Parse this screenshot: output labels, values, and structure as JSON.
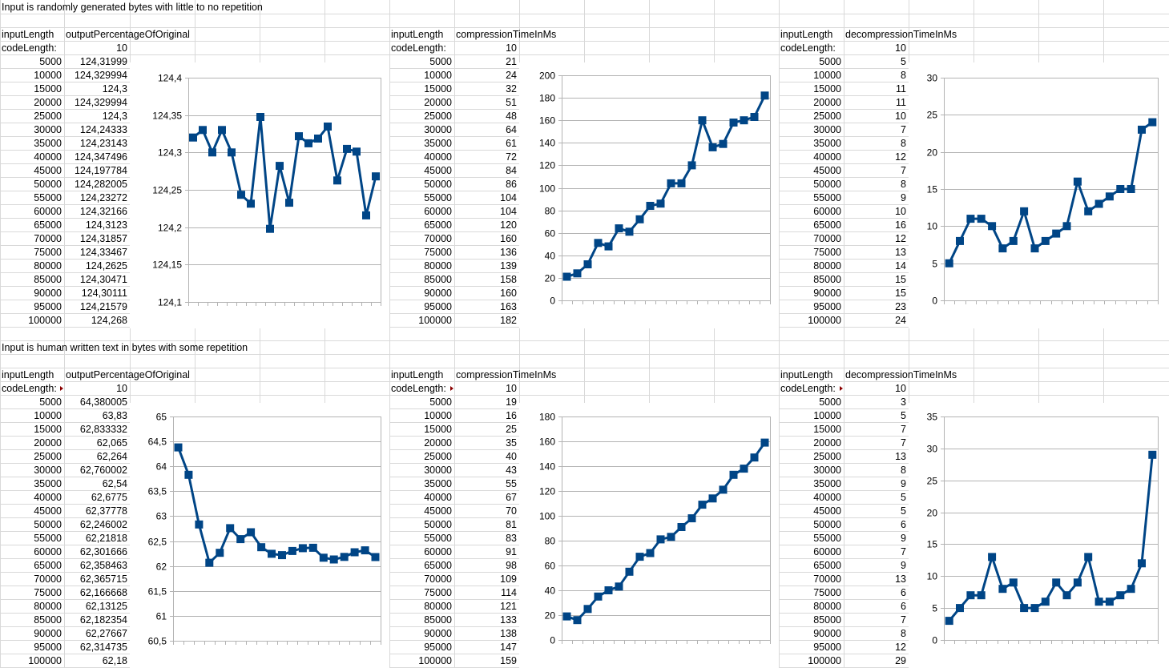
{
  "sections": [
    {
      "heading": "Input is randomly generated bytes with little to no repetition",
      "tables": [
        {
          "col1": "inputLength",
          "col2": "outputPercentageOfOriginal",
          "code_label": "codeLength:",
          "code_value": "10",
          "code_note": false,
          "input_lengths": [
            "5000",
            "10000",
            "15000",
            "20000",
            "25000",
            "30000",
            "35000",
            "40000",
            "45000",
            "50000",
            "55000",
            "60000",
            "65000",
            "70000",
            "75000",
            "80000",
            "85000",
            "90000",
            "95000",
            "100000"
          ],
          "values": [
            "124,31999",
            "124,329994",
            "124,3",
            "124,329994",
            "124,3",
            "124,24333",
            "124,23143",
            "124,347496",
            "124,197784",
            "124,282005",
            "124,23272",
            "124,32166",
            "124,3123",
            "124,31857",
            "124,33467",
            "124,2625",
            "124,30471",
            "124,30111",
            "124,21579",
            "124,268"
          ]
        },
        {
          "col1": "inputLength",
          "col2": "compressionTimeInMs",
          "code_label": "codeLength:",
          "code_value": "10",
          "code_note": false,
          "input_lengths": [
            "5000",
            "10000",
            "15000",
            "20000",
            "25000",
            "30000",
            "35000",
            "40000",
            "45000",
            "50000",
            "55000",
            "60000",
            "65000",
            "70000",
            "75000",
            "80000",
            "85000",
            "90000",
            "95000",
            "100000"
          ],
          "values": [
            "21",
            "24",
            "32",
            "51",
            "48",
            "64",
            "61",
            "72",
            "84",
            "86",
            "104",
            "104",
            "120",
            "160",
            "136",
            "139",
            "158",
            "160",
            "163",
            "182"
          ]
        },
        {
          "col1": "inputLength",
          "col2": "decompressionTimeInMs",
          "code_label": "codeLength:",
          "code_value": "10",
          "code_note": false,
          "input_lengths": [
            "5000",
            "10000",
            "15000",
            "20000",
            "25000",
            "30000",
            "35000",
            "40000",
            "45000",
            "50000",
            "55000",
            "60000",
            "65000",
            "70000",
            "75000",
            "80000",
            "85000",
            "90000",
            "95000",
            "100000"
          ],
          "values": [
            "5",
            "8",
            "11",
            "11",
            "10",
            "7",
            "8",
            "12",
            "7",
            "8",
            "9",
            "10",
            "16",
            "12",
            "13",
            "14",
            "15",
            "15",
            "23",
            "24"
          ]
        }
      ]
    },
    {
      "heading": "Input is human written text in bytes with some repetition",
      "tables": [
        {
          "col1": "inputLength",
          "col2": "outputPercentageOfOriginal",
          "code_label": "codeLength:",
          "code_value": "10",
          "code_note": true,
          "input_lengths": [
            "5000",
            "10000",
            "15000",
            "20000",
            "25000",
            "30000",
            "35000",
            "40000",
            "45000",
            "50000",
            "55000",
            "60000",
            "65000",
            "70000",
            "75000",
            "80000",
            "85000",
            "90000",
            "95000",
            "100000"
          ],
          "values": [
            "64,380005",
            "63,83",
            "62,833332",
            "62,065",
            "62,264",
            "62,760002",
            "62,54",
            "62,6775",
            "62,37778",
            "62,246002",
            "62,21818",
            "62,301666",
            "62,358463",
            "62,365715",
            "62,166668",
            "62,13125",
            "62,182354",
            "62,27667",
            "62,314735",
            "62,18"
          ]
        },
        {
          "col1": "inputLength",
          "col2": "compressionTimeInMs",
          "code_label": "codeLength:",
          "code_value": "10",
          "code_note": true,
          "input_lengths": [
            "5000",
            "10000",
            "15000",
            "20000",
            "25000",
            "30000",
            "35000",
            "40000",
            "45000",
            "50000",
            "55000",
            "60000",
            "65000",
            "70000",
            "75000",
            "80000",
            "85000",
            "90000",
            "95000",
            "100000"
          ],
          "values": [
            "19",
            "16",
            "25",
            "35",
            "40",
            "43",
            "55",
            "67",
            "70",
            "81",
            "83",
            "91",
            "98",
            "109",
            "114",
            "121",
            "133",
            "138",
            "147",
            "159"
          ]
        },
        {
          "col1": "inputLength",
          "col2": "decompressionTimeInMs",
          "code_label": "codeLength:",
          "code_value": "10",
          "code_note": true,
          "input_lengths": [
            "5000",
            "10000",
            "15000",
            "20000",
            "25000",
            "30000",
            "35000",
            "40000",
            "45000",
            "50000",
            "55000",
            "60000",
            "65000",
            "70000",
            "75000",
            "80000",
            "85000",
            "90000",
            "95000",
            "100000"
          ],
          "values": [
            "3",
            "5",
            "7",
            "7",
            "13",
            "8",
            "9",
            "5",
            "5",
            "6",
            "9",
            "7",
            "9",
            "13",
            "6",
            "6",
            "7",
            "8",
            "12",
            "29"
          ]
        }
      ]
    }
  ],
  "colors": {
    "series": "#004586",
    "grid": "#b3b3b3",
    "cell_border": "#d9d9d9",
    "note_marker": "#8b0000"
  },
  "chart_data": [
    {
      "type": "line",
      "ylim": [
        124.1,
        124.4
      ],
      "y_ticks": [
        "124,1",
        "124,15",
        "124,2",
        "124,25",
        "124,3",
        "124,35",
        "124,4"
      ],
      "tick_step": 0.05,
      "series": [
        {
          "values": [
            124.31999,
            124.329994,
            124.3,
            124.329994,
            124.3,
            124.24333,
            124.23143,
            124.347496,
            124.197784,
            124.282005,
            124.23272,
            124.32166,
            124.3123,
            124.31857,
            124.33467,
            124.2625,
            124.30471,
            124.30111,
            124.21579,
            124.268
          ]
        }
      ]
    },
    {
      "type": "line",
      "ylim": [
        0,
        200
      ],
      "y_ticks": [
        "0",
        "20",
        "40",
        "60",
        "80",
        "100",
        "120",
        "140",
        "160",
        "180",
        "200"
      ],
      "tick_step": 20,
      "series": [
        {
          "values": [
            21,
            24,
            32,
            51,
            48,
            64,
            61,
            72,
            84,
            86,
            104,
            104,
            120,
            160,
            136,
            139,
            158,
            160,
            163,
            182
          ]
        }
      ]
    },
    {
      "type": "line",
      "ylim": [
        0,
        30
      ],
      "y_ticks": [
        "0",
        "5",
        "10",
        "15",
        "20",
        "25",
        "30"
      ],
      "tick_step": 5,
      "series": [
        {
          "values": [
            5,
            8,
            11,
            11,
            10,
            7,
            8,
            12,
            7,
            8,
            9,
            10,
            16,
            12,
            13,
            14,
            15,
            15,
            23,
            24
          ]
        }
      ]
    },
    {
      "type": "line",
      "ylim": [
        60.5,
        65
      ],
      "y_ticks": [
        "60,5",
        "61",
        "61,5",
        "62",
        "62,5",
        "63",
        "63,5",
        "64",
        "64,5",
        "65"
      ],
      "tick_step": 0.5,
      "series": [
        {
          "values": [
            64.380005,
            63.83,
            62.833332,
            62.065,
            62.264,
            62.760002,
            62.54,
            62.6775,
            62.37778,
            62.246002,
            62.21818,
            62.301666,
            62.358463,
            62.365715,
            62.166668,
            62.13125,
            62.182354,
            62.27667,
            62.314735,
            62.18
          ]
        }
      ]
    },
    {
      "type": "line",
      "ylim": [
        0,
        180
      ],
      "y_ticks": [
        "0",
        "20",
        "40",
        "60",
        "80",
        "100",
        "120",
        "140",
        "160",
        "180"
      ],
      "tick_step": 20,
      "series": [
        {
          "values": [
            19,
            16,
            25,
            35,
            40,
            43,
            55,
            67,
            70,
            81,
            83,
            91,
            98,
            109,
            114,
            121,
            133,
            138,
            147,
            159
          ]
        }
      ]
    },
    {
      "type": "line",
      "ylim": [
        0,
        35
      ],
      "y_ticks": [
        "0",
        "5",
        "10",
        "15",
        "20",
        "25",
        "30",
        "35"
      ],
      "tick_step": 5,
      "series": [
        {
          "values": [
            3,
            5,
            7,
            7,
            13,
            8,
            9,
            5,
            5,
            6,
            9,
            7,
            9,
            13,
            6,
            6,
            7,
            8,
            12,
            29
          ]
        }
      ]
    }
  ]
}
